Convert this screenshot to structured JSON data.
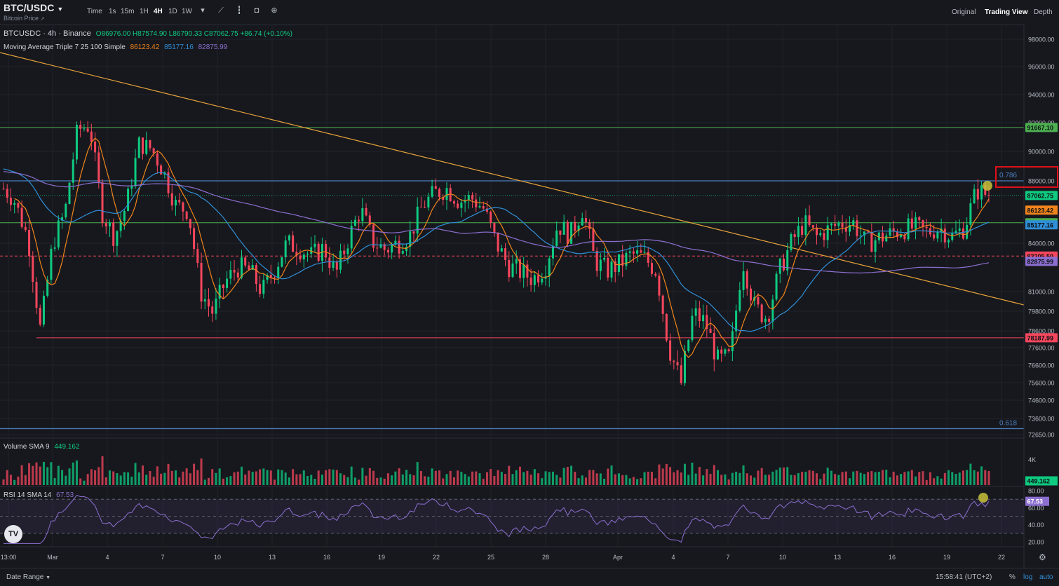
{
  "header": {
    "symbol": "BTC/USDC",
    "subtitle": "Bitcoin Price",
    "timeframes": [
      "Time",
      "1s",
      "15m",
      "1H",
      "4H",
      "1D",
      "1W"
    ],
    "active_timeframe": "4H",
    "views": [
      "Original",
      "Trading View",
      "Depth"
    ],
    "active_view": "Trading View"
  },
  "legend": {
    "symbol_line": "BTCUSDC · 4h · Binance",
    "ohlc": "O86976.00  H87574.90  L86790.33  C87062.75  +86.74 (+0.10%)",
    "ma_label": "Moving Average Triple 7 25 100 Simple",
    "ma7": "86123.42",
    "ma25": "85177.16",
    "ma100": "82875.99",
    "volume_label": "Volume SMA 9",
    "volume_value": "449.162",
    "rsi_label": "RSI 14 SMA 14",
    "rsi_value": "67.53"
  },
  "footer": {
    "date_range": "Date Range",
    "clock": "15:58:41 (UTC+2)",
    "percent": "%",
    "log": "log",
    "auto": "auto"
  },
  "colors": {
    "up": "#0ecb81",
    "down": "#f6465d",
    "ma7": "#f0841c",
    "ma25": "#2f8fd8",
    "ma100": "#8c6fd1",
    "trendline": "#e8a33a",
    "fib": "#4a7fc1",
    "support": "#f6465d",
    "resistance": "#4caf50"
  },
  "chart_data": {
    "type": "candlestick",
    "x_tick_labels": [
      "13:00",
      "Mar",
      "4",
      "7",
      "10",
      "13",
      "16",
      "19",
      "22",
      "25",
      "28",
      "Apr",
      "4",
      "7",
      "10",
      "13",
      "16",
      "19",
      "22"
    ],
    "price_axis_ticks": [
      "98000.00",
      "96000.00",
      "94000.00",
      "92000.00",
      "90000.00",
      "88000.00",
      "84000.00",
      "81000.00",
      "79800.00",
      "78600.00",
      "77600.00",
      "76600.00",
      "75600.00",
      "74600.00",
      "73600.00",
      "72650.00"
    ],
    "price_tags": [
      {
        "value": "91667.10",
        "kind": "resistance"
      },
      {
        "value": "87062.75",
        "kind": "last"
      },
      {
        "value": "86123.42",
        "kind": "ma7"
      },
      {
        "value": "85313.42",
        "kind": "level"
      },
      {
        "value": "85177.16",
        "kind": "ma25"
      },
      {
        "value": "83205.50",
        "kind": "dashed"
      },
      {
        "value": "82875.99",
        "kind": "ma100"
      },
      {
        "value": "78187.99",
        "kind": "support"
      }
    ],
    "fib_labels": [
      {
        "label": "0.786",
        "value": 88000
      },
      {
        "label": "0.618",
        "value": 73000
      }
    ],
    "volume_axis": [
      "4K",
      "449.162"
    ],
    "rsi_axis": [
      "80.00",
      "67.53",
      "60.00",
      "40.00",
      "20.00"
    ],
    "close_path": [
      {
        "t": 0,
        "p": 87500
      },
      {
        "t": 0.8,
        "p": 86900
      },
      {
        "t": 2,
        "p": 84300
      },
      {
        "t": 3,
        "p": 78600
      },
      {
        "t": 4,
        "p": 84000
      },
      {
        "t": 5,
        "p": 86000
      },
      {
        "t": 6,
        "p": 91500
      },
      {
        "t": 7,
        "p": 91800
      },
      {
        "t": 8,
        "p": 86000
      },
      {
        "t": 9,
        "p": 84400
      },
      {
        "t": 10,
        "p": 86500
      },
      {
        "t": 11,
        "p": 90500
      },
      {
        "t": 12,
        "p": 90200
      },
      {
        "t": 13,
        "p": 88600
      },
      {
        "t": 14,
        "p": 86400
      },
      {
        "t": 15,
        "p": 86100
      },
      {
        "t": 16,
        "p": 81000
      },
      {
        "t": 17,
        "p": 79700
      },
      {
        "t": 18,
        "p": 81600
      },
      {
        "t": 19,
        "p": 82500
      },
      {
        "t": 20,
        "p": 82300
      },
      {
        "t": 21,
        "p": 81000
      },
      {
        "t": 22,
        "p": 82400
      },
      {
        "t": 23,
        "p": 84000
      },
      {
        "t": 24,
        "p": 83700
      },
      {
        "t": 25,
        "p": 83200
      },
      {
        "t": 26,
        "p": 83700
      },
      {
        "t": 27,
        "p": 82100
      },
      {
        "t": 28,
        "p": 84300
      },
      {
        "t": 29,
        "p": 86200
      },
      {
        "t": 30,
        "p": 84100
      },
      {
        "t": 31,
        "p": 83600
      },
      {
        "t": 32,
        "p": 84000
      },
      {
        "t": 33,
        "p": 84500
      },
      {
        "t": 34,
        "p": 86400
      },
      {
        "t": 35,
        "p": 87200
      },
      {
        "t": 36,
        "p": 87500
      },
      {
        "t": 37,
        "p": 86700
      },
      {
        "t": 38,
        "p": 86900
      },
      {
        "t": 39,
        "p": 86200
      },
      {
        "t": 40,
        "p": 84000
      },
      {
        "t": 41,
        "p": 82600
      },
      {
        "t": 42,
        "p": 82200
      },
      {
        "t": 43,
        "p": 81800
      },
      {
        "t": 44,
        "p": 82600
      },
      {
        "t": 45,
        "p": 85200
      },
      {
        "t": 46,
        "p": 84500
      },
      {
        "t": 47,
        "p": 86200
      },
      {
        "t": 48,
        "p": 82900
      },
      {
        "t": 49,
        "p": 82300
      },
      {
        "t": 50,
        "p": 82700
      },
      {
        "t": 51,
        "p": 83300
      },
      {
        "t": 52,
        "p": 83100
      },
      {
        "t": 53,
        "p": 82300
      },
      {
        "t": 54,
        "p": 77700
      },
      {
        "t": 55,
        "p": 75500
      },
      {
        "t": 56,
        "p": 79700
      },
      {
        "t": 57,
        "p": 79100
      },
      {
        "t": 58,
        "p": 76800
      },
      {
        "t": 59,
        "p": 77000
      },
      {
        "t": 60,
        "p": 83000
      },
      {
        "t": 61,
        "p": 80000
      },
      {
        "t": 62,
        "p": 79400
      },
      {
        "t": 63,
        "p": 82300
      },
      {
        "t": 64,
        "p": 84100
      },
      {
        "t": 65,
        "p": 85300
      },
      {
        "t": 66,
        "p": 84400
      },
      {
        "t": 67,
        "p": 84900
      },
      {
        "t": 68,
        "p": 85300
      },
      {
        "t": 69,
        "p": 85300
      },
      {
        "t": 70,
        "p": 84000
      },
      {
        "t": 71,
        "p": 84300
      },
      {
        "t": 72,
        "p": 84600
      },
      {
        "t": 73,
        "p": 84900
      },
      {
        "t": 74,
        "p": 85000
      },
      {
        "t": 75,
        "p": 84700
      },
      {
        "t": 76,
        "p": 85000
      },
      {
        "t": 77,
        "p": 84400
      },
      {
        "t": 78,
        "p": 85000
      },
      {
        "t": 79,
        "p": 87400
      },
      {
        "t": 80,
        "p": 87063
      }
    ]
  }
}
